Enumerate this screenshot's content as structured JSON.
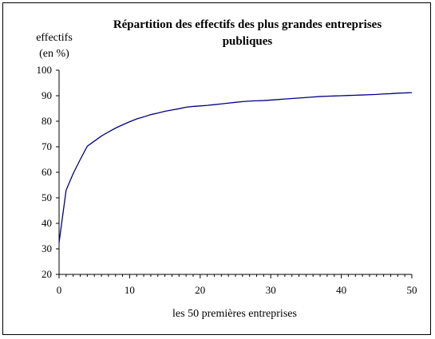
{
  "chart_data": {
    "type": "line",
    "title_line1": "Répartition des effectifs des plus grandes entreprises",
    "title_line2": "publiques",
    "ylabel_line1": "effectifs",
    "ylabel_line2": "(en %)",
    "xlabel": "les 50 premières entreprises",
    "xlim": [
      0,
      50
    ],
    "ylim": [
      20,
      100
    ],
    "x_ticks": [
      "0",
      "10",
      "20",
      "30",
      "40",
      "50"
    ],
    "y_ticks": [
      "20",
      "30",
      "40",
      "50",
      "60",
      "70",
      "80",
      "90",
      "100"
    ],
    "grid": false,
    "legend": "none",
    "series": [
      {
        "color": "#000080",
        "x": [
          0,
          1,
          2,
          3,
          4,
          5,
          6,
          7,
          8,
          9,
          10,
          11,
          12,
          13,
          14,
          15,
          16,
          17,
          18,
          19,
          20,
          21,
          22,
          23,
          24,
          25,
          26,
          27,
          28,
          29,
          30,
          31,
          32,
          33,
          34,
          35,
          36,
          37,
          38,
          39,
          40,
          41,
          42,
          43,
          44,
          45,
          46,
          47,
          48,
          49,
          50
        ],
        "values": [
          32.5,
          53,
          59.5,
          65,
          70.2,
          72.2,
          74.2,
          75.8,
          77.3,
          78.6,
          79.8,
          80.9,
          81.7,
          82.6,
          83.2,
          83.9,
          84.4,
          84.9,
          85.5,
          85.8,
          86.0,
          86.2,
          86.5,
          86.8,
          87.1,
          87.4,
          87.7,
          87.9,
          88.0,
          88.1,
          88.3,
          88.5,
          88.7,
          88.9,
          89.1,
          89.3,
          89.5,
          89.7,
          89.8,
          89.9,
          90.0,
          90.1,
          90.2,
          90.3,
          90.4,
          90.5,
          90.7,
          90.8,
          91.0,
          91.1,
          91.2
        ]
      }
    ]
  }
}
